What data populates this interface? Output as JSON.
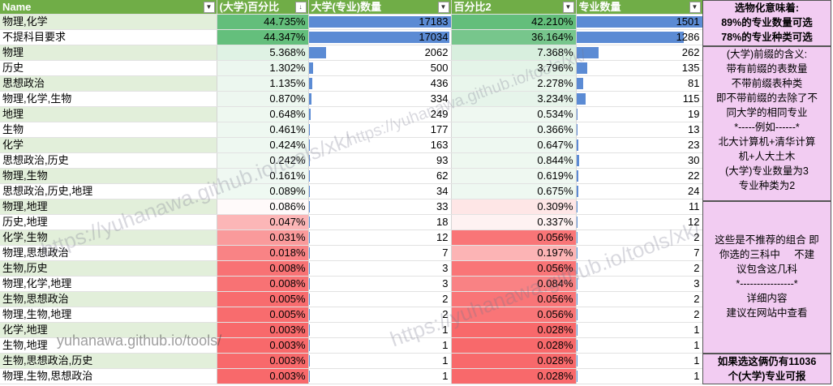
{
  "headers": [
    "Name",
    "(大学)百分比",
    "大学(专业)数量",
    "百分比2",
    "专业数量"
  ],
  "rows": [
    {
      "name": "物理,化学",
      "pct": "44.735%",
      "pct_v": 44.735,
      "cnt": "17183",
      "cnt_v": 17183,
      "pct2": "42.210%",
      "pct2_v": 42.21,
      "major": "1501",
      "major_v": 1501
    },
    {
      "name": "不提科目要求",
      "pct": "44.347%",
      "pct_v": 44.347,
      "cnt": "17034",
      "cnt_v": 17034,
      "pct2": "36.164%",
      "pct2_v": 36.164,
      "major": "1286",
      "major_v": 1286
    },
    {
      "name": "物理",
      "pct": "5.368%",
      "pct_v": 5.368,
      "cnt": "2062",
      "cnt_v": 2062,
      "pct2": "7.368%",
      "pct2_v": 7.368,
      "major": "262",
      "major_v": 262
    },
    {
      "name": "历史",
      "pct": "1.302%",
      "pct_v": 1.302,
      "cnt": "500",
      "cnt_v": 500,
      "pct2": "3.796%",
      "pct2_v": 3.796,
      "major": "135",
      "major_v": 135
    },
    {
      "name": "思想政治",
      "pct": "1.135%",
      "pct_v": 1.135,
      "cnt": "436",
      "cnt_v": 436,
      "pct2": "2.278%",
      "pct2_v": 2.278,
      "major": "81",
      "major_v": 81
    },
    {
      "name": "物理,化学,生物",
      "pct": "0.870%",
      "pct_v": 0.87,
      "cnt": "334",
      "cnt_v": 334,
      "pct2": "3.234%",
      "pct2_v": 3.234,
      "major": "115",
      "major_v": 115
    },
    {
      "name": "地理",
      "pct": "0.648%",
      "pct_v": 0.648,
      "cnt": "249",
      "cnt_v": 249,
      "pct2": "0.534%",
      "pct2_v": 0.534,
      "major": "19",
      "major_v": 19
    },
    {
      "name": "生物",
      "pct": "0.461%",
      "pct_v": 0.461,
      "cnt": "177",
      "cnt_v": 177,
      "pct2": "0.366%",
      "pct2_v": 0.366,
      "major": "13",
      "major_v": 13
    },
    {
      "name": "化学",
      "pct": "0.424%",
      "pct_v": 0.424,
      "cnt": "163",
      "cnt_v": 163,
      "pct2": "0.647%",
      "pct2_v": 0.647,
      "major": "23",
      "major_v": 23
    },
    {
      "name": "思想政治,历史",
      "pct": "0.242%",
      "pct_v": 0.242,
      "cnt": "93",
      "cnt_v": 93,
      "pct2": "0.844%",
      "pct2_v": 0.844,
      "major": "30",
      "major_v": 30
    },
    {
      "name": "物理,生物",
      "pct": "0.161%",
      "pct_v": 0.161,
      "cnt": "62",
      "cnt_v": 62,
      "pct2": "0.619%",
      "pct2_v": 0.619,
      "major": "22",
      "major_v": 22
    },
    {
      "name": "思想政治,历史,地理",
      "pct": "0.089%",
      "pct_v": 0.089,
      "cnt": "34",
      "cnt_v": 34,
      "pct2": "0.675%",
      "pct2_v": 0.675,
      "major": "24",
      "major_v": 24
    },
    {
      "name": "物理,地理",
      "pct": "0.086%",
      "pct_v": 0.086,
      "cnt": "33",
      "cnt_v": 33,
      "pct2": "0.309%",
      "pct2_v": 0.309,
      "major": "11",
      "major_v": 11
    },
    {
      "name": "历史,地理",
      "pct": "0.047%",
      "pct_v": 0.047,
      "cnt": "18",
      "cnt_v": 18,
      "pct2": "0.337%",
      "pct2_v": 0.337,
      "major": "12",
      "major_v": 12
    },
    {
      "name": "化学,生物",
      "pct": "0.031%",
      "pct_v": 0.031,
      "cnt": "12",
      "cnt_v": 12,
      "pct2": "0.056%",
      "pct2_v": 0.056,
      "major": "2",
      "major_v": 2
    },
    {
      "name": "物理,思想政治",
      "pct": "0.018%",
      "pct_v": 0.018,
      "cnt": "7",
      "cnt_v": 7,
      "pct2": "0.197%",
      "pct2_v": 0.197,
      "major": "7",
      "major_v": 7
    },
    {
      "name": "生物,历史",
      "pct": "0.008%",
      "pct_v": 0.008,
      "cnt": "3",
      "cnt_v": 3,
      "pct2": "0.056%",
      "pct2_v": 0.056,
      "major": "2",
      "major_v": 2
    },
    {
      "name": "物理,化学,地理",
      "pct": "0.008%",
      "pct_v": 0.008,
      "cnt": "3",
      "cnt_v": 3,
      "pct2": "0.084%",
      "pct2_v": 0.084,
      "major": "3",
      "major_v": 3
    },
    {
      "name": "生物,思想政治",
      "pct": "0.005%",
      "pct_v": 0.005,
      "cnt": "2",
      "cnt_v": 2,
      "pct2": "0.056%",
      "pct2_v": 0.056,
      "major": "2",
      "major_v": 2
    },
    {
      "name": "物理,生物,地理",
      "pct": "0.005%",
      "pct_v": 0.005,
      "cnt": "2",
      "cnt_v": 2,
      "pct2": "0.056%",
      "pct2_v": 0.056,
      "major": "2",
      "major_v": 2
    },
    {
      "name": "化学,地理",
      "pct": "0.003%",
      "pct_v": 0.003,
      "cnt": "1",
      "cnt_v": 1,
      "pct2": "0.028%",
      "pct2_v": 0.028,
      "major": "1",
      "major_v": 1
    },
    {
      "name": "生物,地理",
      "pct": "0.003%",
      "pct_v": 0.003,
      "cnt": "1",
      "cnt_v": 1,
      "pct2": "0.028%",
      "pct2_v": 0.028,
      "major": "1",
      "major_v": 1
    },
    {
      "name": "生物,思想政治,历史",
      "pct": "0.003%",
      "pct_v": 0.003,
      "cnt": "1",
      "cnt_v": 1,
      "pct2": "0.028%",
      "pct2_v": 0.028,
      "major": "1",
      "major_v": 1
    },
    {
      "name": "物理,生物,思想政治",
      "pct": "0.003%",
      "pct_v": 0.003,
      "cnt": "1",
      "cnt_v": 1,
      "pct2": "0.028%",
      "pct2_v": 0.028,
      "major": "1",
      "major_v": 1
    }
  ],
  "side": {
    "box1": [
      "选物化意味着:",
      "89%的专业数量可选",
      "78%的专业种类可选"
    ],
    "box2": [
      "(大学)前缀的含义:",
      "带有前缀的表数量",
      "不带前缀表种类",
      "即不带前缀的去除了不",
      "同大学的相同专业",
      "*-----例如------*",
      "北大计算机+清华计算",
      "机+人大土木",
      "(大学)专业数量为3",
      "专业种类为2"
    ],
    "box3": [
      "这些是不推荐的组合 即",
      "你选的三科中     不建",
      "议包含这几科",
      "*----------------*",
      "详细内容",
      "建议在网站中查看"
    ],
    "box4": [
      "如果选这俩仍有11036",
      "个(大学)专业可报"
    ]
  },
  "watermark": "https://yuhanawa.github.io/tools/xk/",
  "watermark_short": "yuhanawa.github.io/tools/",
  "colors": {
    "header": "#70ad47",
    "bar": "#5b8bd4",
    "green": "#63be7b",
    "red": "#f8696b",
    "side": "#f2ccf2"
  }
}
